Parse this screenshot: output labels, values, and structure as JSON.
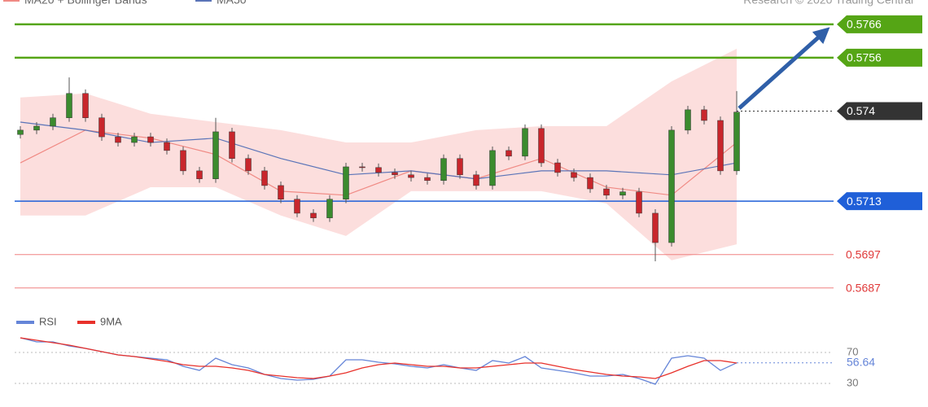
{
  "chart_data": [
    {
      "type": "candlestick",
      "source": "Research © 2020 Trading Central",
      "ylim": [
        0.56806,
        0.57733
      ],
      "open": [
        0.5733,
        0.57343,
        0.57355,
        0.5738,
        0.57453,
        0.5738,
        0.57323,
        0.57306,
        0.57323,
        0.57306,
        0.57282,
        0.57221,
        0.57197,
        0.57338,
        0.57258,
        0.57221,
        0.57177,
        0.57136,
        0.57094,
        0.5708,
        0.57136,
        0.57233,
        0.57231,
        0.57216,
        0.57209,
        0.57201,
        0.57192,
        0.57258,
        0.57209,
        0.57177,
        0.57282,
        0.57265,
        0.57348,
        0.57245,
        0.57216,
        0.57201,
        0.57167,
        0.57148,
        0.57158,
        0.57094,
        0.57006,
        0.57343,
        0.57404,
        0.57372,
        0.57221
      ],
      "high": [
        0.57355,
        0.57367,
        0.57392,
        0.57501,
        0.57465,
        0.57392,
        0.57335,
        0.57335,
        0.57335,
        0.57318,
        0.57294,
        0.57233,
        0.5738,
        0.5735,
        0.5727,
        0.57233,
        0.57189,
        0.57148,
        0.57106,
        0.57148,
        0.57245,
        0.57245,
        0.57243,
        0.57228,
        0.57221,
        0.57213,
        0.5727,
        0.5727,
        0.57221,
        0.57294,
        0.57294,
        0.5736,
        0.5736,
        0.57257,
        0.57228,
        0.57213,
        0.57179,
        0.5717,
        0.5717,
        0.57106,
        0.57355,
        0.57416,
        0.57416,
        0.57384,
        0.5746
      ],
      "low": [
        0.57318,
        0.57331,
        0.57343,
        0.57368,
        0.57368,
        0.57311,
        0.57294,
        0.57294,
        0.57294,
        0.5727,
        0.57209,
        0.57185,
        0.57185,
        0.57246,
        0.57209,
        0.57165,
        0.57124,
        0.57082,
        0.57068,
        0.57068,
        0.57124,
        0.57219,
        0.57204,
        0.57197,
        0.57189,
        0.5718,
        0.5718,
        0.57197,
        0.57165,
        0.57165,
        0.57253,
        0.57253,
        0.57233,
        0.57204,
        0.57189,
        0.57155,
        0.57136,
        0.57136,
        0.57082,
        0.5695,
        0.56994,
        0.57331,
        0.5736,
        0.57209,
        0.57209
      ],
      "close": [
        0.57343,
        0.57355,
        0.5738,
        0.57453,
        0.5738,
        0.57323,
        0.57306,
        0.57323,
        0.57306,
        0.57282,
        0.57221,
        0.57197,
        0.57338,
        0.57258,
        0.57221,
        0.57177,
        0.57136,
        0.57094,
        0.5708,
        0.57136,
        0.57233,
        0.57231,
        0.57216,
        0.57209,
        0.57201,
        0.57192,
        0.57258,
        0.57209,
        0.57177,
        0.57282,
        0.57265,
        0.57348,
        0.57245,
        0.57216,
        0.57201,
        0.57167,
        0.57148,
        0.57158,
        0.57094,
        0.57006,
        0.57343,
        0.57404,
        0.57372,
        0.57221,
        0.57397
      ],
      "up_color": "#3b8b2e",
      "down_color": "#c8262c",
      "bands": {
        "name": "MA20 + Bollinger Bands",
        "color": "#f08a84",
        "fill": "#fbd3d2",
        "x": [
          0,
          4,
          8,
          12,
          16,
          20,
          24,
          28,
          32,
          36,
          40,
          44
        ],
        "upper": [
          0.57441,
          0.57453,
          0.57392,
          0.57367,
          0.57343,
          0.57306,
          0.57306,
          0.57343,
          0.57355,
          0.57355,
          0.57489,
          0.57587
        ],
        "middle": [
          0.57245,
          0.57343,
          0.57319,
          0.5727,
          0.5716,
          0.57148,
          0.57221,
          0.57197,
          0.57258,
          0.57172,
          0.57148,
          0.57306
        ],
        "lower": [
          0.57087,
          0.57087,
          0.57172,
          0.57172,
          0.57087,
          0.57026,
          0.5716,
          0.5716,
          0.5716,
          0.57123,
          0.56953,
          0.57001
        ]
      },
      "ma50": {
        "name": "MA50",
        "color": "#5a74b8",
        "x": [
          0,
          4,
          8,
          12,
          16,
          20,
          24,
          28,
          32,
          36,
          40,
          44
        ],
        "values": [
          0.57367,
          0.57343,
          0.57306,
          0.57319,
          0.57258,
          0.57209,
          0.57221,
          0.57197,
          0.57221,
          0.57221,
          0.57209,
          0.57245
        ]
      },
      "levels": [
        {
          "value": 0.5766,
          "color": "#55a515",
          "style": "box"
        },
        {
          "value": 0.5756,
          "color": "#55a515",
          "style": "box"
        },
        {
          "value": 0.574,
          "color": "#333333",
          "style": "current"
        },
        {
          "value": 0.5713,
          "color": "#1f5fd8",
          "style": "box"
        },
        {
          "value": 0.5697,
          "color": "#f08080",
          "style": "text"
        },
        {
          "value": 0.5687,
          "color": "#f08080",
          "style": "text"
        }
      ]
    },
    {
      "type": "line",
      "ylim": [
        20,
        100
      ],
      "yticks": [
        30,
        70
      ],
      "series": [
        {
          "name": "RSI",
          "color": "#6585d8",
          "values": [
            88.9,
            83.7,
            83.7,
            78.4,
            75.3,
            71.1,
            66.8,
            64.7,
            62.6,
            60.5,
            52.1,
            46.8,
            62.6,
            54.2,
            50.0,
            41.6,
            36.3,
            34.2,
            35.3,
            39.5,
            60.5,
            60.5,
            57.4,
            55.3,
            52.1,
            50.0,
            54.2,
            50.0,
            46.8,
            59.5,
            56.3,
            64.7,
            50.0,
            46.8,
            43.7,
            39.5,
            39.5,
            41.6,
            36.3,
            28.9,
            62.6,
            65.8,
            62.6,
            46.8,
            56.64
          ]
        },
        {
          "name": "9MA",
          "color": "#e8312b",
          "values": [
            88.9,
            85.8,
            82.6,
            79.5,
            75.3,
            71.1,
            66.8,
            64.7,
            61.6,
            58.4,
            54.2,
            52.1,
            52.1,
            50.0,
            46.8,
            41.6,
            39.5,
            37.4,
            36.3,
            39.5,
            43.7,
            50.0,
            54.2,
            56.3,
            54.2,
            52.1,
            52.1,
            50.0,
            50.0,
            52.1,
            54.2,
            56.3,
            56.3,
            52.1,
            47.9,
            44.7,
            41.6,
            39.5,
            38.4,
            36.3,
            43.7,
            52.1,
            59.5,
            59.5,
            56.3
          ]
        }
      ]
    }
  ]
}
